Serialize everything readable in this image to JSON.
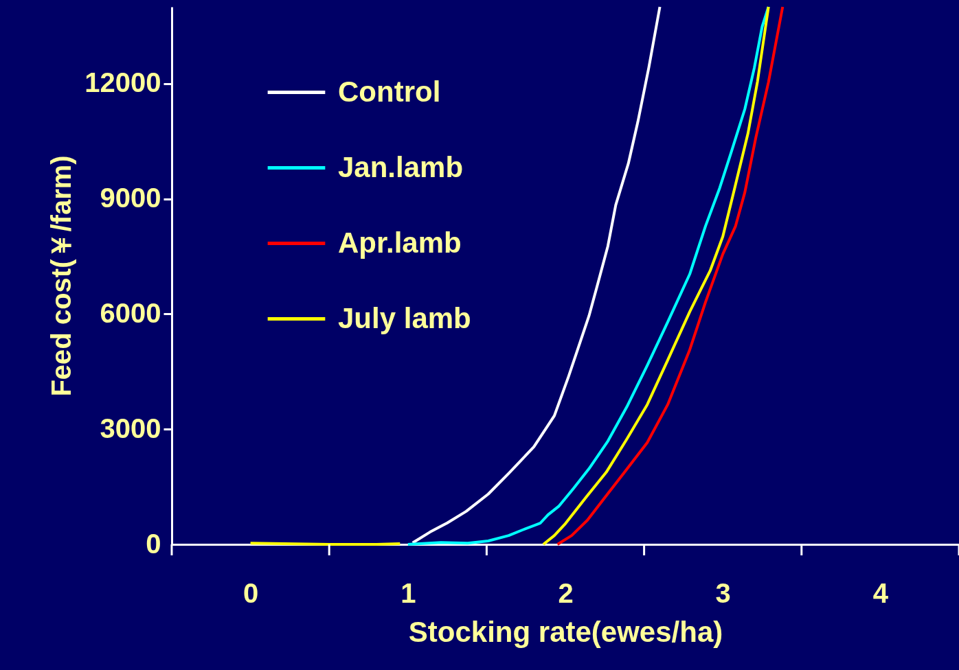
{
  "chart_data": {
    "type": "line",
    "xlabel": "Stocking rate(ewes/ha)",
    "ylabel": "Feed cost(￥/farm)",
    "xlim": [
      -0.5,
      4.5
    ],
    "xticks": [
      {
        "value": -0.5,
        "label": null
      },
      0,
      {
        "value": 0.5,
        "label": null
      },
      1,
      {
        "value": 1.5,
        "label": null
      },
      2,
      {
        "value": 2.5,
        "label": null
      },
      3,
      {
        "value": 3.5,
        "label": null
      },
      4,
      {
        "value": 4.5,
        "label": null
      }
    ],
    "ylim": [
      0,
      14000
    ],
    "yticks": [
      0,
      3000,
      6000,
      9000,
      12000
    ],
    "grid": false,
    "legend": "top left",
    "marker": "none",
    "line_style": "solid",
    "series": [
      {
        "name": "Control",
        "color": "#ffffff",
        "x": [
          1.03,
          1.14,
          1.25,
          1.37,
          1.51,
          1.64,
          1.8,
          1.93,
          2.02,
          2.15,
          2.2,
          2.27,
          2.32,
          2.4,
          2.46,
          2.53,
          2.6
        ],
        "values": [
          40,
          320,
          560,
          860,
          1310,
          1850,
          2540,
          3350,
          4370,
          5950,
          6700,
          7770,
          8840,
          9920,
          11000,
          12420,
          14000
        ]
      },
      {
        "name": "Jan.lamb",
        "color": "#00ffff",
        "x": [
          1.0,
          1.21,
          1.38,
          1.51,
          1.64,
          1.73,
          1.84,
          1.89,
          1.96,
          2.05,
          2.15,
          2.27,
          2.39,
          2.52,
          2.65,
          2.79,
          2.89,
          2.98,
          3.05,
          3.14,
          3.2,
          3.25,
          3.29
        ],
        "values": [
          0,
          50,
          30,
          90,
          230,
          380,
          550,
          770,
          1000,
          1450,
          1970,
          2690,
          3580,
          4660,
          5790,
          7040,
          8290,
          9280,
          10170,
          11340,
          12410,
          13490,
          14000
        ]
      },
      {
        "name": "Apr.lamb",
        "color": "#ff0000",
        "x": [
          1.95,
          2.04,
          2.14,
          2.26,
          2.37,
          2.52,
          2.65,
          2.79,
          2.89,
          3.0,
          3.08,
          3.14,
          3.21,
          3.29,
          3.38
        ],
        "values": [
          0,
          230,
          630,
          1270,
          1850,
          2650,
          3640,
          5070,
          6310,
          7560,
          8280,
          9170,
          10600,
          12040,
          14000
        ]
      },
      {
        "name": "July lamb",
        "color": "#ffff00",
        "x": [
          0,
          0.5,
          0.8,
          0.95,
          1.2,
          1.86,
          1.93,
          2.0,
          2.13,
          2.26,
          2.39,
          2.52,
          2.65,
          2.79,
          2.92,
          3.0,
          3.07,
          3.16,
          3.22,
          3.29
        ],
        "values": [
          30,
          0,
          0,
          20,
          null,
          0,
          230,
          540,
          1220,
          1880,
          2740,
          3640,
          4800,
          6060,
          7130,
          8020,
          9190,
          10710,
          12050,
          14000
        ]
      }
    ]
  }
}
